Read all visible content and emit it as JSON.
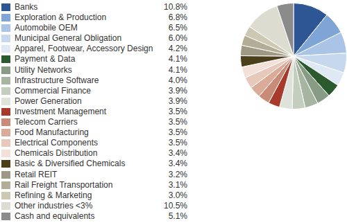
{
  "chart_data": {
    "type": "pie",
    "categories": [
      "Banks",
      "Exploration & Production",
      "Automobile OEM",
      "Municipal General Obligation",
      "Apparel, Footwear, Accessory Design",
      "Payment & Data",
      "Utility Networks",
      "Infrastructure Software",
      "Commercial Finance",
      "Power Generation",
      "Investment Management",
      "Telecom Carriers",
      "Food Manufacturing",
      "Electrical Components",
      "Chemicals Distribution",
      "Basic & Diversified Chemicals",
      "Retail REIT",
      "Rail Freight Transportation",
      "Refining & Marketing",
      "Other industries <3%",
      "Cash and equivalents"
    ],
    "values": [
      10.8,
      6.8,
      6.5,
      6.0,
      4.2,
      4.1,
      4.1,
      4.0,
      3.9,
      3.9,
      3.5,
      3.5,
      3.5,
      3.5,
      3.4,
      3.4,
      3.2,
      3.1,
      3.0,
      10.5,
      5.1
    ],
    "value_labels": [
      "10.8%",
      "6.8%",
      "6.5%",
      "6.0%",
      "4.2%",
      "4.1%",
      "4.1%",
      "4.0%",
      "3.9%",
      "3.9%",
      "3.5%",
      "3.5%",
      "3.5%",
      "3.5%",
      "3.4%",
      "3.4%",
      "3.2%",
      "3.1%",
      "3.0%",
      "10.5%",
      "5.1%"
    ],
    "colors": [
      "#2e5694",
      "#7ea5d6",
      "#a9c4e6",
      "#c6d8ee",
      "#dfe9f5",
      "#2b5a2e",
      "#889c85",
      "#a7b4a1",
      "#c4cebf",
      "#dde3d9",
      "#a73a2b",
      "#c98a77",
      "#d9ab98",
      "#e7c9bc",
      "#f3e1d9",
      "#4a3e1b",
      "#9d9984",
      "#b3ad97",
      "#cdc8b3",
      "#dcdcd0",
      "#8b8b8b"
    ],
    "legend": "left"
  }
}
